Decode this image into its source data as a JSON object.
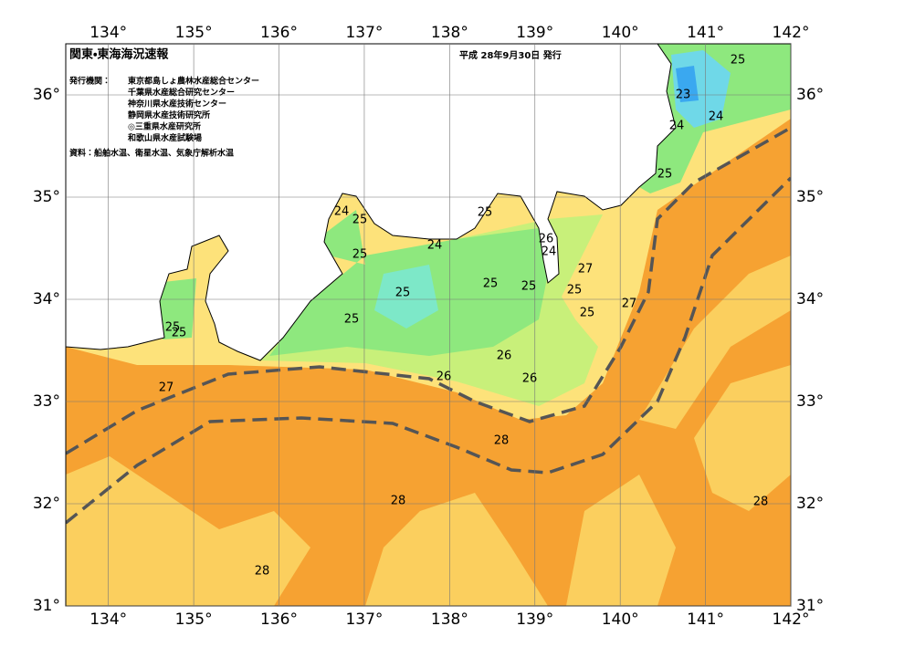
{
  "map": {
    "title": "関東・東海海況速報",
    "date": "平成 28年9月30日 発行",
    "issuers_label": "発行機関：",
    "issuers": [
      "東京都島しょ農林水産総合センター",
      "千葉県水産総合研究センター",
      "神奈川県水産技術センター",
      "静岡県水産技術研究所",
      "◎三重県水産研究所",
      "和歌山県水産試験場"
    ],
    "source": "資料：船舶水温、衛星水温、気象庁解析水温",
    "lon_range": [
      133.5,
      142
    ],
    "lat_range": [
      31,
      36.5
    ],
    "lon_ticks": [
      {
        "value": 134,
        "label": "134°"
      },
      {
        "value": 135,
        "label": "135°"
      },
      {
        "value": 136,
        "label": "136°"
      },
      {
        "value": 137,
        "label": "137°"
      },
      {
        "value": 138,
        "label": "138°"
      },
      {
        "value": 139,
        "label": "139°"
      },
      {
        "value": 140,
        "label": "140°"
      },
      {
        "value": 141,
        "label": "141°"
      },
      {
        "value": 142,
        "label": "142°"
      }
    ],
    "lat_ticks": [
      {
        "value": 31,
        "label": "31°"
      },
      {
        "value": 32,
        "label": "32°"
      },
      {
        "value": 33,
        "label": "33°"
      },
      {
        "value": 34,
        "label": "34°"
      },
      {
        "value": 35,
        "label": "35°"
      },
      {
        "value": 36,
        "label": "36°"
      }
    ],
    "contour_labels": [
      "25",
      "23",
      "24",
      "24",
      "25",
      "24",
      "25",
      "24",
      "25",
      "26",
      "24",
      "25",
      "27",
      "25",
      "25",
      "25",
      "25",
      "27",
      "25",
      "25",
      "25",
      "25",
      "26",
      "26",
      "26",
      "27",
      "28",
      "28",
      "28",
      "28"
    ]
  }
}
